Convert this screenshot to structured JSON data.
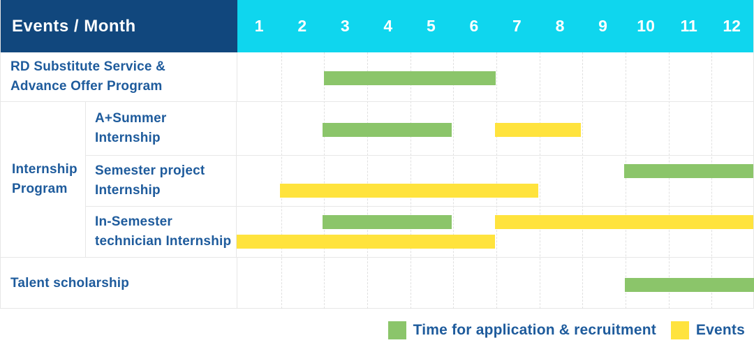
{
  "header": {
    "title": "Events / Month"
  },
  "colors": {
    "header_bg": "#11477d",
    "month_header_bg": "#0fd6ee",
    "application": "#8bc56a",
    "events": "#ffe33d",
    "label_text": "#1e5b9c",
    "grid": "#e7e7e7"
  },
  "chart_data": {
    "type": "table",
    "subtype": "gantt",
    "title": "Events / Month",
    "xlabel": "Month",
    "x_ticks": [
      "1",
      "2",
      "3",
      "4",
      "5",
      "6",
      "7",
      "8",
      "9",
      "10",
      "11",
      "12"
    ],
    "x_range": [
      1,
      12
    ],
    "grid": true,
    "legend_position": "bottom-right",
    "legend": [
      {
        "key": "application",
        "label": "Time for application & recruitment",
        "color": "#8bc56a"
      },
      {
        "key": "events",
        "label": "Events",
        "color": "#ffe33d"
      }
    ],
    "group_label": "Internship Program",
    "group_label_lines": [
      "Internship",
      "Program"
    ],
    "rows": [
      {
        "group": "",
        "label": "RD Substitute Service & Advance Offer Program",
        "label_lines": [
          "RD Substitute Service &",
          "Advance Offer Program"
        ],
        "bars": [
          {
            "type": "application",
            "start_month": 3,
            "end_month": 6,
            "line": "single"
          }
        ]
      },
      {
        "group": "Internship Program",
        "label": "A+Summer Internship",
        "label_lines": [
          "A+Summer",
          "Internship"
        ],
        "bars": [
          {
            "type": "application",
            "start_month": 3,
            "end_month": 5,
            "line": "single"
          },
          {
            "type": "events",
            "start_month": 7,
            "end_month": 8,
            "line": "single"
          }
        ]
      },
      {
        "group": "Internship Program",
        "label": "Semester project Internship",
        "label_lines": [
          "Semester project",
          "Internship"
        ],
        "bars": [
          {
            "type": "application",
            "start_month": 10,
            "end_month": 12,
            "line": "top"
          },
          {
            "type": "events",
            "start_month": 2,
            "end_month": 7,
            "line": "bottom"
          }
        ]
      },
      {
        "group": "Internship Program",
        "label": "In-Semester technician Internship",
        "label_lines": [
          "In-Semester",
          "technician Internship"
        ],
        "bars": [
          {
            "type": "application",
            "start_month": 3,
            "end_month": 5,
            "line": "top"
          },
          {
            "type": "events",
            "start_month": 7,
            "end_month": 12,
            "line": "top"
          },
          {
            "type": "events",
            "start_month": 1,
            "end_month": 6,
            "line": "bottom"
          }
        ]
      },
      {
        "group": "",
        "label": "Talent scholarship",
        "label_lines": [
          "Talent scholarship"
        ],
        "bars": [
          {
            "type": "application",
            "start_month": 10,
            "end_month": 12,
            "line": "single"
          }
        ]
      }
    ]
  }
}
